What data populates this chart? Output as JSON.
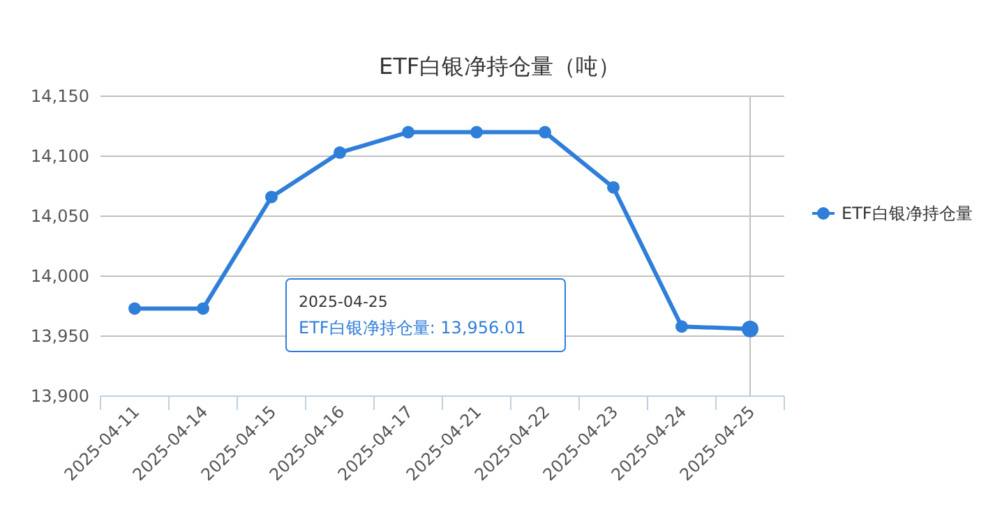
{
  "chart_data": {
    "type": "line",
    "title": "ETF白银净持仓量（吨）",
    "categories": [
      "2025-04-11",
      "2025-04-14",
      "2025-04-15",
      "2025-04-16",
      "2025-04-17",
      "2025-04-21",
      "2025-04-22",
      "2025-04-23",
      "2025-04-24",
      "2025-04-25"
    ],
    "series": [
      {
        "name": "ETF白银净持仓量",
        "color": "#2f7ed8",
        "values": [
          13973,
          13973,
          14066,
          14103,
          14120,
          14120,
          14120,
          14074,
          13958,
          13956.01
        ]
      }
    ],
    "ylim": [
      13900,
      14150
    ],
    "yticks": [
      {
        "value": 13900,
        "label": "13,900"
      },
      {
        "value": 13950,
        "label": "13,950"
      },
      {
        "value": 14000,
        "label": "14,000"
      },
      {
        "value": 14050,
        "label": "14,050"
      },
      {
        "value": 14100,
        "label": "14,100"
      },
      {
        "value": 14150,
        "label": "14,150"
      }
    ],
    "grid": "y",
    "legend": "right",
    "marker": "circle",
    "line_style": "solid",
    "ref_lines": [
      {
        "axis": "x",
        "value": "2025-04-25",
        "color": "#c0c0c0"
      }
    ],
    "annotations": [
      "2025-04-25\nETF白银净持仓量: 13,956.01"
    ]
  }
}
